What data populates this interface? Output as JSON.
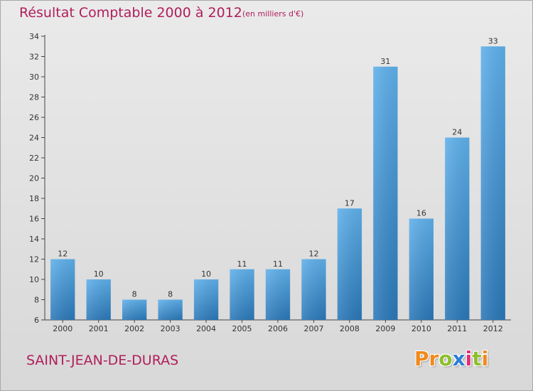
{
  "chart_data": {
    "type": "bar",
    "title": "Résultat Comptable 2000 à 2012",
    "subtitle": "(en milliers d'€)",
    "categories": [
      "2000",
      "2001",
      "2002",
      "2003",
      "2004",
      "2005",
      "2006",
      "2007",
      "2008",
      "2009",
      "2010",
      "2011",
      "2012"
    ],
    "values": [
      12,
      10,
      8,
      8,
      10,
      11,
      11,
      12,
      17,
      31,
      16,
      24,
      33
    ],
    "ylim": [
      6,
      34
    ],
    "yticks": [
      6,
      8,
      10,
      12,
      14,
      16,
      18,
      20,
      22,
      24,
      26,
      28,
      30,
      32,
      34
    ],
    "xlabel": "",
    "ylabel": "",
    "grid": false,
    "bar_color": "#3a8fd0"
  },
  "footer": {
    "town": "SAINT-JEAN-DE-DURAS",
    "logo_text": "Proxiti",
    "logo_colors": [
      "#f08a1c",
      "#f08a1c",
      "#8dbf2f",
      "#2b7fd4",
      "#e52d7a",
      "#8dbf2f",
      "#f08a1c"
    ]
  },
  "colors": {
    "title": "#b01e5a",
    "axis": "#444444"
  }
}
